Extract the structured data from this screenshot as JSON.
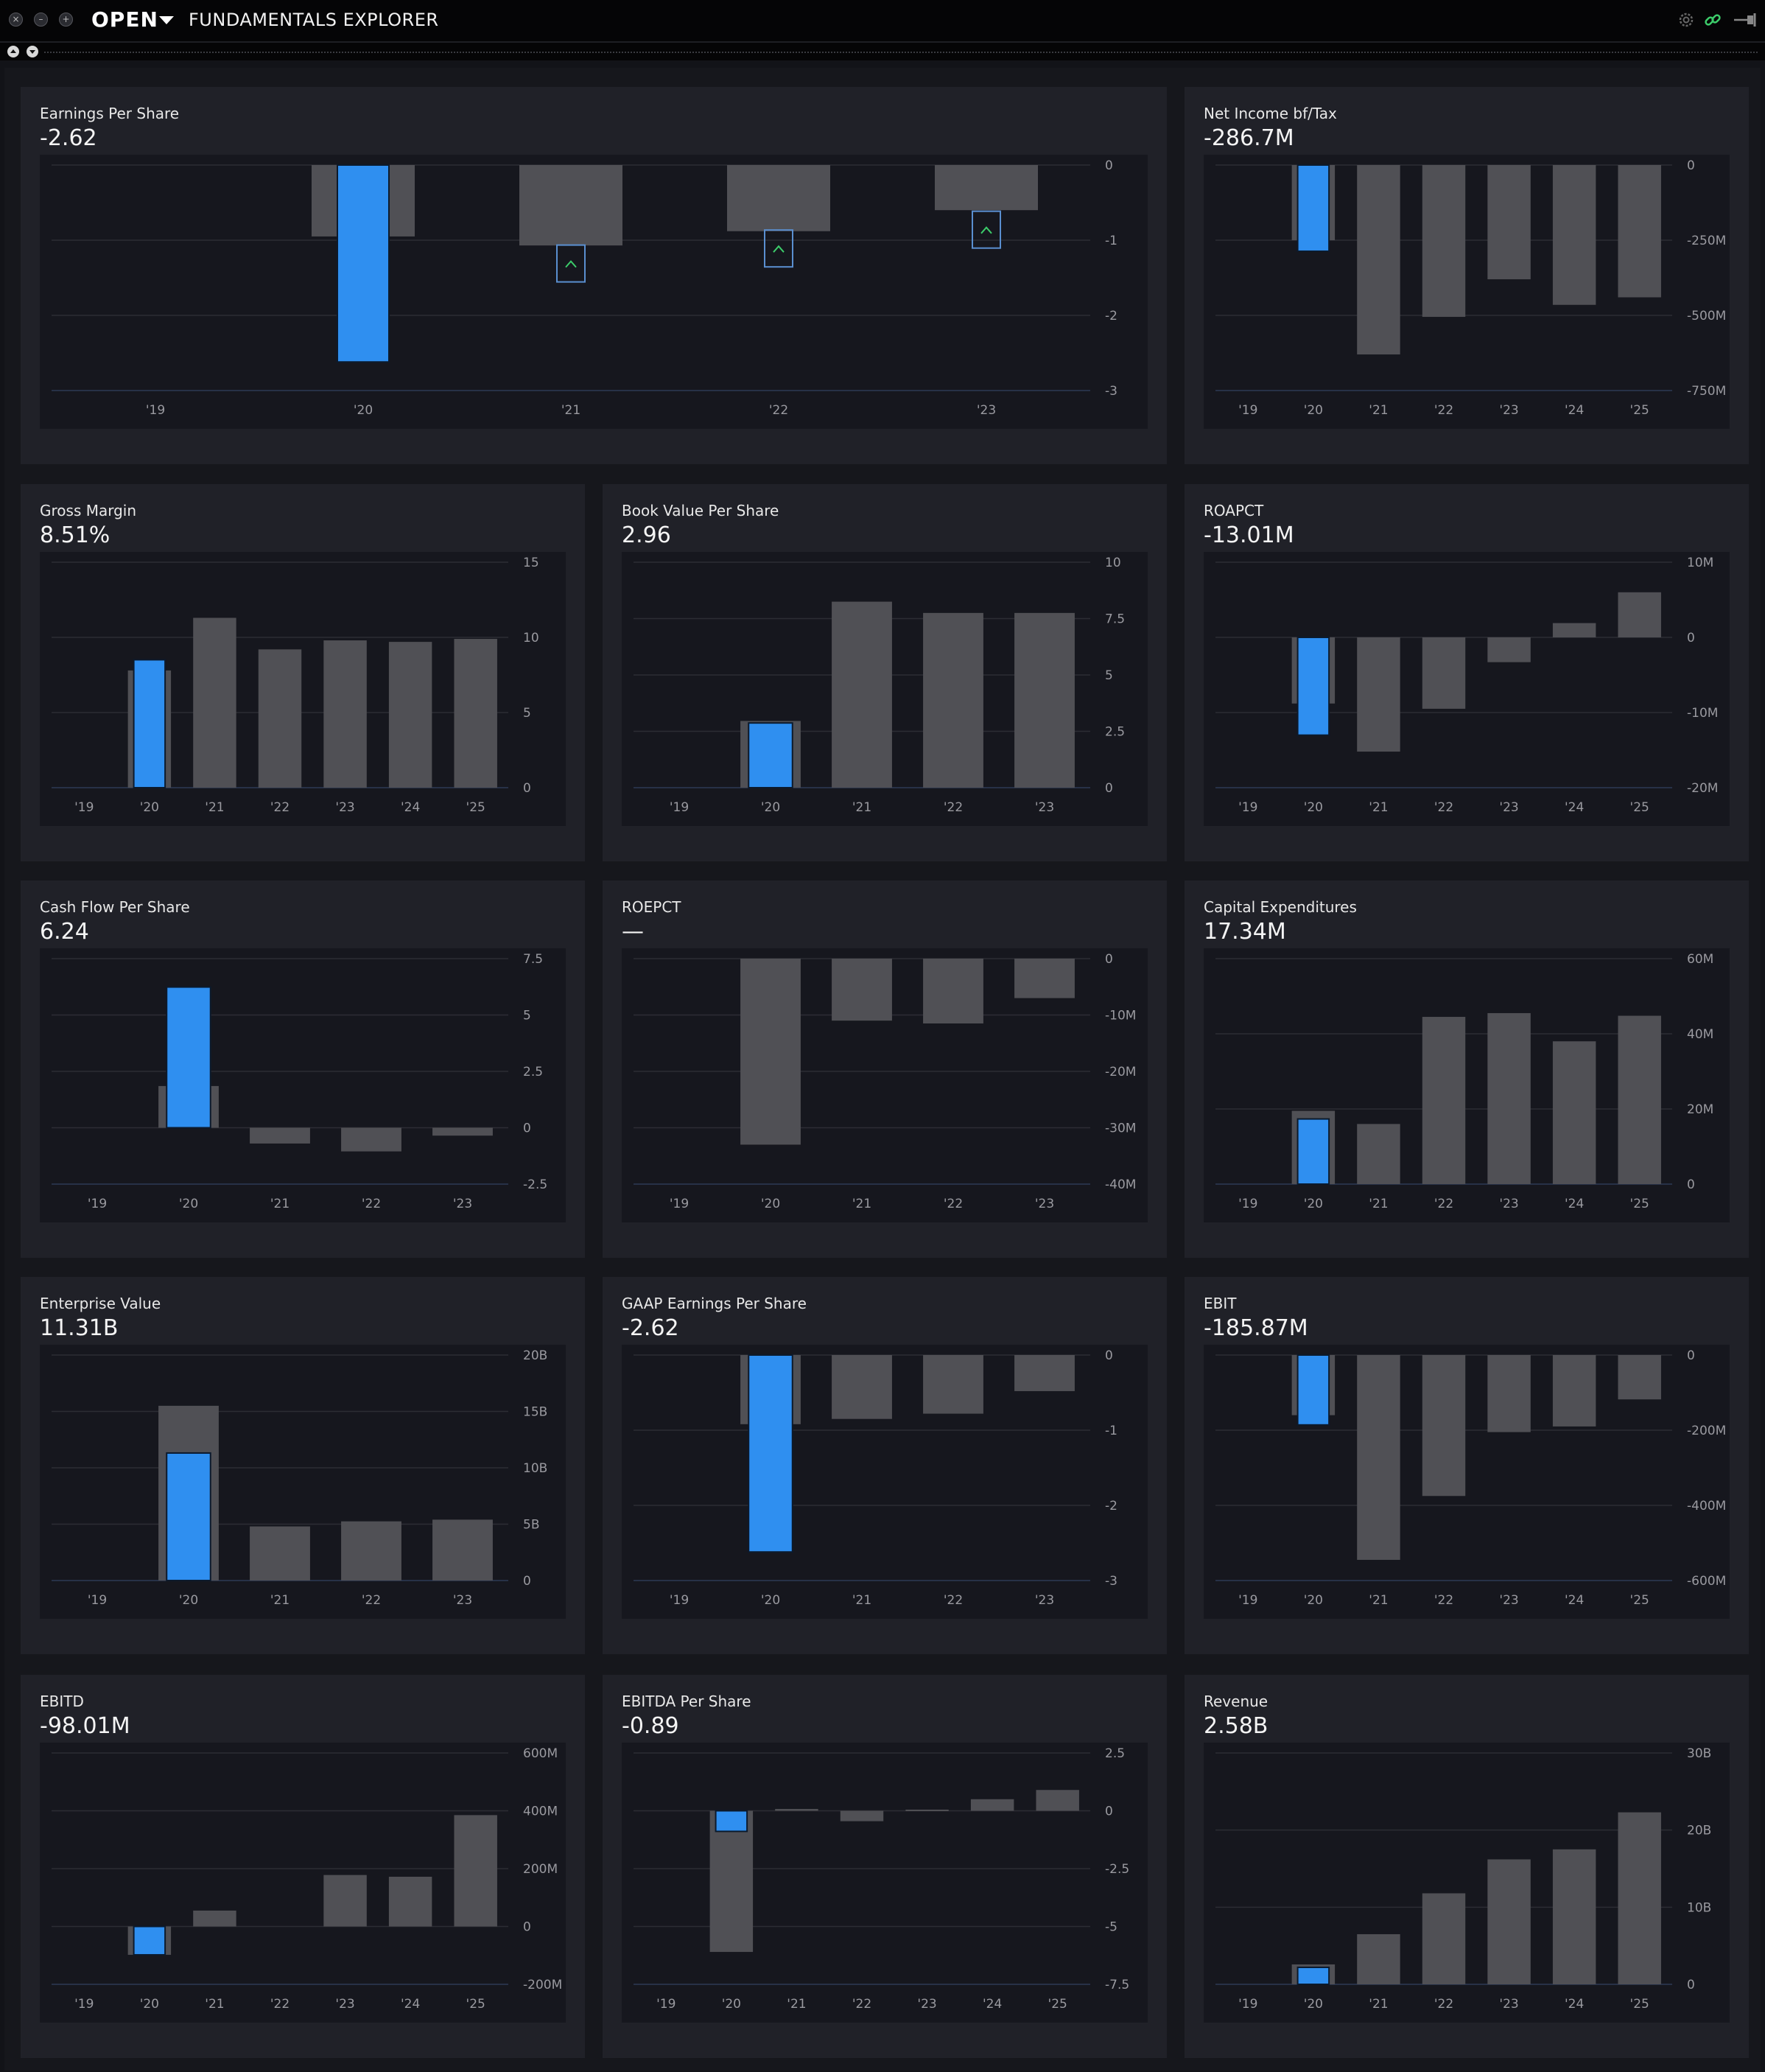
{
  "window": {
    "app_name": "OPEN",
    "title": "FUNDAMENTALS EXPLORER",
    "icons": [
      "close-icon",
      "minimize-icon",
      "maximize-icon",
      "settings-icon",
      "link-icon",
      "pin-icon",
      "scroll-up-icon",
      "scroll-down-icon"
    ]
  },
  "colors": {
    "highlight_bar": "#2f8ff0",
    "bar": "#505055",
    "panel": "#202128",
    "plot": "#16171e",
    "up_arrow": "#3ccc6a"
  },
  "panels": [
    {
      "id": "earnings-per-share",
      "title": "Earnings Per Share",
      "value": "-2.62",
      "chart_data": {
        "type": "bar",
        "categories": [
          "'19",
          "'20",
          "'21",
          "'22",
          "'23"
        ],
        "series": [
          {
            "values": [
              null,
              -0.95,
              -1.07,
              -0.88,
              -0.6
            ]
          },
          {
            "values": [
              null,
              -2.62,
              null,
              null,
              null
            ]
          }
        ],
        "ylim": [
          -3,
          0
        ],
        "yticks": [
          "0",
          "-1",
          "-2",
          "-3"
        ],
        "highlight_index": 1,
        "annotations": [
          {
            "index": 2,
            "value": -1.3
          },
          {
            "index": 3,
            "value": -1.1
          },
          {
            "index": 4,
            "value": -0.85
          }
        ]
      }
    },
    {
      "id": "net-income-bf-tax",
      "title": "Net Income bf/Tax",
      "value": "-286.7M",
      "chart_data": {
        "type": "bar",
        "categories": [
          "'19",
          "'20",
          "'21",
          "'22",
          "'23",
          "'24",
          "'25"
        ],
        "series": [
          {
            "values": [
              null,
              -250,
              -630,
              -505,
              -380,
              -465,
              -440
            ]
          },
          {
            "values": [
              null,
              -286.7,
              null,
              null,
              null,
              null,
              null
            ]
          }
        ],
        "ylim": [
          -750,
          0
        ],
        "yticks": [
          "0",
          "-250M",
          "-500M",
          "-750M"
        ],
        "highlight_index": 1
      }
    },
    {
      "id": "gross-margin",
      "title": "Gross Margin",
      "value": "8.51%",
      "chart_data": {
        "type": "bar",
        "categories": [
          "'19",
          "'20",
          "'21",
          "'22",
          "'23",
          "'24",
          "'25"
        ],
        "series": [
          {
            "values": [
              null,
              7.8,
              11.3,
              9.2,
              9.8,
              9.7,
              9.9
            ]
          },
          {
            "values": [
              null,
              8.51,
              null,
              null,
              null,
              null,
              null
            ]
          }
        ],
        "ylim": [
          0,
          15
        ],
        "yticks": [
          "15",
          "10",
          "5",
          "0"
        ],
        "highlight_index": 1
      }
    },
    {
      "id": "book-value-per-share",
      "title": "Book Value Per Share",
      "value": "2.96",
      "chart_data": {
        "type": "bar",
        "categories": [
          "'19",
          "'20",
          "'21",
          "'22",
          "'23"
        ],
        "series": [
          {
            "values": [
              null,
              2.96,
              8.25,
              7.75,
              7.75
            ]
          },
          {
            "values": [
              null,
              2.87,
              null,
              null,
              null
            ]
          }
        ],
        "ylim": [
          0,
          10
        ],
        "yticks": [
          "10",
          "7.5",
          "5",
          "2.5",
          "0"
        ],
        "highlight_index": 1
      }
    },
    {
      "id": "roapct",
      "title": "ROAPCT",
      "value": "-13.01M",
      "chart_data": {
        "type": "bar",
        "categories": [
          "'19",
          "'20",
          "'21",
          "'22",
          "'23",
          "'24",
          "'25"
        ],
        "series": [
          {
            "values": [
              null,
              -8.8,
              -15.2,
              -9.5,
              -3.3,
              1.9,
              6.0
            ]
          },
          {
            "values": [
              null,
              -13.01,
              null,
              null,
              null,
              null,
              null
            ]
          }
        ],
        "ylim": [
          -20,
          10
        ],
        "yticks": [
          "10M",
          "0",
          "-10M",
          "-20M"
        ],
        "highlight_index": 1
      }
    },
    {
      "id": "cash-flow-per-share",
      "title": "Cash Flow Per Share",
      "value": "6.24",
      "chart_data": {
        "type": "bar",
        "categories": [
          "'19",
          "'20",
          "'21",
          "'22",
          "'23"
        ],
        "series": [
          {
            "values": [
              null,
              1.85,
              -0.7,
              -1.05,
              -0.35
            ]
          },
          {
            "values": [
              null,
              6.24,
              null,
              null,
              null
            ]
          }
        ],
        "ylim": [
          -2.5,
          7.5
        ],
        "yticks": [
          "7.5",
          "5",
          "2.5",
          "0",
          "-2.5"
        ],
        "highlight_index": 1
      }
    },
    {
      "id": "roepct",
      "title": "ROEPCT",
      "value": "—",
      "chart_data": {
        "type": "bar",
        "categories": [
          "'19",
          "'20",
          "'21",
          "'22",
          "'23"
        ],
        "series": [
          {
            "values": [
              null,
              -33,
              -11,
              -11.5,
              -7
            ]
          }
        ],
        "ylim": [
          -40,
          0
        ],
        "yticks": [
          "0",
          "-10M",
          "-20M",
          "-30M",
          "-40M"
        ],
        "highlight_index": null
      }
    },
    {
      "id": "capital-expenditures",
      "title": "Capital Expenditures",
      "value": "17.34M",
      "chart_data": {
        "type": "bar",
        "categories": [
          "'19",
          "'20",
          "'21",
          "'22",
          "'23",
          "'24",
          "'25"
        ],
        "series": [
          {
            "values": [
              null,
              19.5,
              16,
              44.5,
              45.5,
              38,
              44.8
            ]
          },
          {
            "values": [
              null,
              17.34,
              null,
              null,
              null,
              null,
              null
            ]
          }
        ],
        "ylim": [
          0,
          60
        ],
        "yticks": [
          "60M",
          "40M",
          "20M",
          "0"
        ],
        "highlight_index": 1
      }
    },
    {
      "id": "enterprise-value",
      "title": "Enterprise Value",
      "value": "11.31B",
      "chart_data": {
        "type": "bar",
        "categories": [
          "'19",
          "'20",
          "'21",
          "'22",
          "'23"
        ],
        "series": [
          {
            "values": [
              null,
              15.5,
              4.8,
              5.25,
              5.4
            ]
          },
          {
            "values": [
              null,
              11.31,
              null,
              null,
              null
            ]
          }
        ],
        "ylim": [
          0,
          20
        ],
        "yticks": [
          "20B",
          "15B",
          "10B",
          "5B",
          "0"
        ],
        "highlight_index": 1
      }
    },
    {
      "id": "gaap-earnings-per-share",
      "title": "GAAP Earnings Per Share",
      "value": "-2.62",
      "chart_data": {
        "type": "bar",
        "categories": [
          "'19",
          "'20",
          "'21",
          "'22",
          "'23"
        ],
        "series": [
          {
            "values": [
              null,
              -0.92,
              -0.85,
              -0.78,
              -0.48
            ]
          },
          {
            "values": [
              null,
              -2.62,
              null,
              null,
              null
            ]
          }
        ],
        "ylim": [
          -3,
          0
        ],
        "yticks": [
          "0",
          "-1",
          "-2",
          "-3"
        ],
        "highlight_index": 1
      }
    },
    {
      "id": "ebit",
      "title": "EBIT",
      "value": "-185.87M",
      "chart_data": {
        "type": "bar",
        "categories": [
          "'19",
          "'20",
          "'21",
          "'22",
          "'23",
          "'24",
          "'25"
        ],
        "series": [
          {
            "values": [
              null,
              -160,
              -545,
              -375,
              -205,
              -190,
              -118
            ]
          },
          {
            "values": [
              null,
              -185.87,
              null,
              null,
              null,
              null,
              null
            ]
          }
        ],
        "ylim": [
          -600,
          0
        ],
        "yticks": [
          "0",
          "-200M",
          "-400M",
          "-600M"
        ],
        "highlight_index": 1
      }
    },
    {
      "id": "ebitd",
      "title": "EBITD",
      "value": "-98.01M",
      "chart_data": {
        "type": "bar",
        "categories": [
          "'19",
          "'20",
          "'21",
          "'22",
          "'23",
          "'24",
          "'25"
        ],
        "series": [
          {
            "values": [
              null,
              -98.01,
              55,
              null,
              178,
              172,
              385
            ]
          },
          {
            "values": [
              null,
              -98.01,
              null,
              null,
              null,
              null,
              null
            ]
          }
        ],
        "ylim": [
          -200,
          600
        ],
        "yticks": [
          "600M",
          "400M",
          "200M",
          "0",
          "-200M"
        ],
        "highlight_index": 1
      }
    },
    {
      "id": "ebitda-per-share",
      "title": "EBITDA Per Share",
      "value": "-0.89",
      "chart_data": {
        "type": "bar",
        "categories": [
          "'19",
          "'20",
          "'21",
          "'22",
          "'23",
          "'24",
          "'25"
        ],
        "series": [
          {
            "values": [
              null,
              -6.1,
              0.08,
              -0.45,
              0.05,
              0.5,
              0.9
            ]
          },
          {
            "values": [
              null,
              -0.89,
              null,
              null,
              null,
              null,
              null
            ]
          }
        ],
        "ylim": [
          -7.5,
          2.5
        ],
        "yticks": [
          "2.5",
          "0",
          "-2.5",
          "-5",
          "-7.5"
        ],
        "highlight_index": 1
      }
    },
    {
      "id": "revenue",
      "title": "Revenue",
      "value": "2.58B",
      "chart_data": {
        "type": "bar",
        "categories": [
          "'19",
          "'20",
          "'21",
          "'22",
          "'23",
          "'24",
          "'25"
        ],
        "series": [
          {
            "values": [
              null,
              2.58,
              6.5,
              11.8,
              16.2,
              17.5,
              22.3
            ]
          },
          {
            "values": [
              null,
              2.2,
              null,
              null,
              null,
              null,
              null
            ]
          }
        ],
        "ylim": [
          0,
          30
        ],
        "yticks": [
          "30B",
          "20B",
          "10B",
          "0"
        ],
        "highlight_index": 1
      }
    }
  ]
}
